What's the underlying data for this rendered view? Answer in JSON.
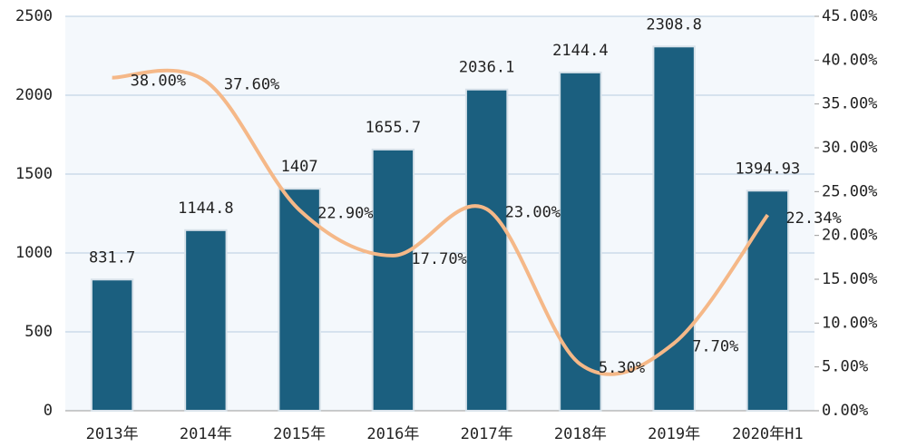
{
  "chart_data": {
    "type": "bar-line",
    "categories": [
      "2013年",
      "2014年",
      "2015年",
      "2016年",
      "2017年",
      "2018年",
      "2019年",
      "2020年H1"
    ],
    "series": [
      {
        "type": "bar",
        "color": "#1b5f7f",
        "values": [
          831.7,
          1144.8,
          1407,
          1655.7,
          2036.1,
          2144.4,
          2308.8,
          1394.93
        ]
      },
      {
        "type": "line",
        "axis": "y2",
        "color": "#f5b888",
        "values": [
          38.0,
          37.6,
          22.9,
          17.7,
          23.0,
          5.3,
          7.7,
          22.34
        ],
        "value_labels": [
          "38.00%",
          "37.60%",
          "22.90%",
          "17.70%",
          "23.00%",
          "5.30%",
          "7.70%",
          "22.34%"
        ]
      }
    ],
    "ylim": [
      0,
      2500
    ],
    "yticks": [
      0,
      500,
      1000,
      1500,
      2000,
      2500
    ],
    "y2lim": [
      0,
      45
    ],
    "y2ticks": [
      {
        "value": 0,
        "label": "0.00%"
      },
      {
        "value": 5,
        "label": "5.00%"
      },
      {
        "value": 10,
        "label": "10.00%"
      },
      {
        "value": 15,
        "label": "15.00%"
      },
      {
        "value": 20,
        "label": "20.00%"
      },
      {
        "value": 25,
        "label": "25.00%"
      },
      {
        "value": 30,
        "label": "30.00%"
      },
      {
        "value": 35,
        "label": "35.00%"
      },
      {
        "value": 40,
        "label": "40.00%"
      },
      {
        "value": 45,
        "label": "45.00%"
      }
    ],
    "grid": true
  }
}
